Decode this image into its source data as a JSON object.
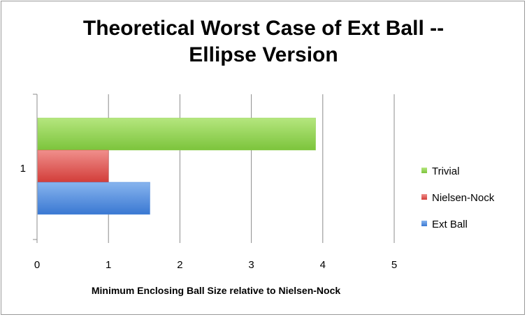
{
  "chart_data": {
    "type": "bar",
    "orientation": "horizontal",
    "title_lines": [
      "Theoretical Worst Case of Ext Ball --",
      "Ellipse Version"
    ],
    "xlabel": "Minimum Enclosing Ball Size relative to Nielsen-Nock",
    "ylabel": "",
    "categories": [
      "1"
    ],
    "xlim": [
      0,
      5
    ],
    "x_ticks": [
      "0",
      "1",
      "2",
      "3",
      "4",
      "5"
    ],
    "grid": true,
    "legend_position": "right",
    "series": [
      {
        "name": "Trivial",
        "values": [
          3.9
        ],
        "color": "#8fd14f"
      },
      {
        "name": "Nielsen-Nock",
        "values": [
          1.0
        ],
        "color": "#e0504d"
      },
      {
        "name": "Ext Ball",
        "values": [
          1.58
        ],
        "color": "#4a86d8"
      }
    ]
  }
}
